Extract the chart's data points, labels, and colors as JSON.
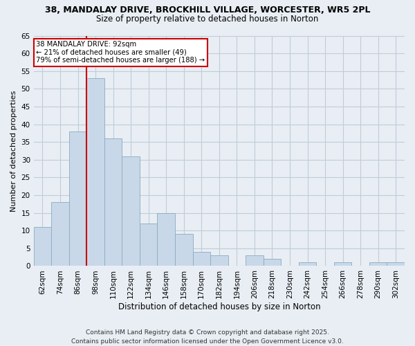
{
  "title": "38, MANDALAY DRIVE, BROCKHILL VILLAGE, WORCESTER, WR5 2PL",
  "subtitle": "Size of property relative to detached houses in Norton",
  "xlabel": "Distribution of detached houses by size in Norton",
  "ylabel": "Number of detached properties",
  "bar_labels": [
    "62sqm",
    "74sqm",
    "86sqm",
    "98sqm",
    "110sqm",
    "122sqm",
    "134sqm",
    "146sqm",
    "158sqm",
    "170sqm",
    "182sqm",
    "194sqm",
    "206sqm",
    "218sqm",
    "230sqm",
    "242sqm",
    "254sqm",
    "266sqm",
    "278sqm",
    "290sqm",
    "302sqm"
  ],
  "bar_values": [
    11,
    18,
    38,
    53,
    36,
    31,
    12,
    15,
    9,
    4,
    3,
    0,
    3,
    2,
    0,
    1,
    0,
    1,
    0,
    1,
    1
  ],
  "bar_color": "#c8d8e8",
  "bar_edge_color": "#8aaac0",
  "ylim": [
    0,
    65
  ],
  "yticks": [
    0,
    5,
    10,
    15,
    20,
    25,
    30,
    35,
    40,
    45,
    50,
    55,
    60,
    65
  ],
  "vline_color": "#cc0000",
  "annotation_text": "38 MANDALAY DRIVE: 92sqm\n← 21% of detached houses are smaller (49)\n79% of semi-detached houses are larger (188) →",
  "annotation_box_facecolor": "#ffffff",
  "annotation_box_edgecolor": "#cc0000",
  "footer_line1": "Contains HM Land Registry data © Crown copyright and database right 2025.",
  "footer_line2": "Contains public sector information licensed under the Open Government Licence v3.0.",
  "background_color": "#e8eef4",
  "plot_bg_color": "#e8eef4",
  "grid_color": "#c0ccd8",
  "title_fontsize": 9,
  "subtitle_fontsize": 8.5,
  "ylabel_fontsize": 8,
  "xlabel_fontsize": 8.5,
  "tick_fontsize": 7.5,
  "footer_fontsize": 6.5
}
